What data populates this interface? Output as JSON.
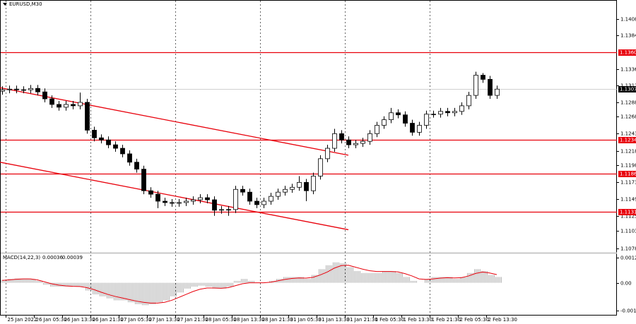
{
  "chart_data": {
    "type": "candlestick",
    "title": "EURUSD,M30",
    "ylim": [
      1.1073,
      1.1435
    ],
    "yticks": [
      1.1408,
      1.1384,
      1.1336,
      1.1312,
      1.1288,
      1.1268,
      1.1243,
      1.1218,
      1.1198,
      1.1173,
      1.1149,
      1.1125,
      1.1103,
      1.1078
    ],
    "levels": [
      {
        "value": 1.136,
        "label": "1.1360"
      },
      1.1234,
      1.1186,
      1.1131
    ],
    "level_color": "#e8000b",
    "last_price": 1.1307,
    "x_labels": [
      "25 Jan 2022",
      "26 Jan 05:30",
      "26 Jan 13:30",
      "26 Jan 21:30",
      "27 Jan 05:30",
      "27 Jan 13:30",
      "27 Jan 21:30",
      "28 Jan 05:30",
      "28 Jan 13:30",
      "28 Jan 21:30",
      "31 Jan 05:30",
      "31 Jan 13:30",
      "31 Jan 21:30",
      "1 Feb 05:30",
      "1 Feb 13:30",
      "1 Feb 21:30",
      "2 Feb 05:30",
      "2 Feb 13:30"
    ],
    "open": [
      1.1304,
      1.1306,
      1.1307,
      1.1306,
      1.1306,
      1.1308,
      1.1303,
      1.1293,
      1.1285,
      1.1281,
      1.1285,
      1.1283,
      1.1288,
      1.1248,
      1.1237,
      1.1234,
      1.1227,
      1.1222,
      1.1214,
      1.1202,
      1.1192,
      1.1161,
      1.1156,
      1.1146,
      1.1144,
      1.1143,
      1.1144,
      1.1146,
      1.1148,
      1.1151,
      1.1148,
      1.1133,
      1.1134,
      1.1134,
      1.1163,
      1.1159,
      1.1146,
      1.1141,
      1.1146,
      1.1153,
      1.1159,
      1.1163,
      1.1166,
      1.1173,
      1.1161,
      1.1182,
      1.1207,
      1.1222,
      1.1243,
      1.1234,
      1.1227,
      1.1229,
      1.1232,
      1.1243,
      1.1255,
      1.1263,
      1.1273,
      1.127,
      1.1258,
      1.1245,
      1.1255,
      1.1271,
      1.1271,
      1.1275,
      1.1273,
      1.1275,
      1.1283,
      1.1298,
      1.1327,
      1.1321,
      1.1298
    ],
    "high": [
      1.1311,
      1.1312,
      1.1312,
      1.1311,
      1.1313,
      1.1313,
      1.1308,
      1.1298,
      1.129,
      1.129,
      1.129,
      1.1302,
      1.1293,
      1.1253,
      1.1242,
      1.1239,
      1.1232,
      1.1227,
      1.1219,
      1.1207,
      1.1197,
      1.1166,
      1.1161,
      1.1151,
      1.1149,
      1.1149,
      1.1151,
      1.1153,
      1.1156,
      1.1156,
      1.1153,
      1.1139,
      1.1139,
      1.1168,
      1.1168,
      1.1164,
      1.1151,
      1.1151,
      1.1158,
      1.1164,
      1.1168,
      1.1171,
      1.1182,
      1.1178,
      1.1187,
      1.1212,
      1.1227,
      1.125,
      1.1248,
      1.1239,
      1.1234,
      1.1237,
      1.1248,
      1.126,
      1.1268,
      1.128,
      1.1278,
      1.1275,
      1.1263,
      1.126,
      1.1276,
      1.1276,
      1.128,
      1.128,
      1.128,
      1.1288,
      1.1303,
      1.1332,
      1.133,
      1.1326,
      1.1312
    ],
    "low": [
      1.1299,
      1.1301,
      1.1301,
      1.1301,
      1.1301,
      1.1298,
      1.1288,
      1.128,
      1.1276,
      1.1276,
      1.1278,
      1.1278,
      1.1243,
      1.1232,
      1.1229,
      1.1222,
      1.1217,
      1.1209,
      1.1197,
      1.1187,
      1.1156,
      1.1151,
      1.1136,
      1.1139,
      1.1138,
      1.1138,
      1.1139,
      1.1141,
      1.1143,
      1.1143,
      1.1125,
      1.1128,
      1.1125,
      1.1129,
      1.1154,
      1.1141,
      1.1136,
      1.1136,
      1.1141,
      1.1148,
      1.1154,
      1.1158,
      1.1161,
      1.1146,
      1.1156,
      1.1177,
      1.1202,
      1.1217,
      1.1229,
      1.1222,
      1.1222,
      1.1224,
      1.1227,
      1.1238,
      1.125,
      1.1258,
      1.1265,
      1.1253,
      1.124,
      1.124,
      1.125,
      1.1266,
      1.1266,
      1.1268,
      1.1268,
      1.127,
      1.1278,
      1.1293,
      1.1316,
      1.1293,
      1.1293
    ],
    "close": [
      1.1306,
      1.1307,
      1.1306,
      1.1306,
      1.1308,
      1.1303,
      1.1293,
      1.1285,
      1.1281,
      1.1285,
      1.1283,
      1.1288,
      1.1248,
      1.1237,
      1.1234,
      1.1227,
      1.1222,
      1.1214,
      1.1202,
      1.1192,
      1.1161,
      1.1156,
      1.1146,
      1.1144,
      1.1143,
      1.1144,
      1.1146,
      1.1148,
      1.1151,
      1.1148,
      1.1133,
      1.1134,
      1.1134,
      1.1163,
      1.1159,
      1.1146,
      1.1141,
      1.1146,
      1.1153,
      1.1159,
      1.1163,
      1.1166,
      1.1173,
      1.1161,
      1.1182,
      1.1207,
      1.1222,
      1.1243,
      1.1234,
      1.1227,
      1.1229,
      1.1232,
      1.1243,
      1.1255,
      1.1263,
      1.1273,
      1.127,
      1.1258,
      1.1245,
      1.1255,
      1.1271,
      1.1271,
      1.1275,
      1.1273,
      1.1275,
      1.1283,
      1.1298,
      1.1327,
      1.1321,
      1.1298,
      1.1307
    ],
    "trendlines": [
      {
        "x": [
          0,
          49
        ],
        "values": [
          1.1309,
          1.1212
        ],
        "color": "#e8000b"
      },
      {
        "x": [
          0,
          49
        ],
        "values": [
          1.1202,
          1.1105
        ],
        "color": "#e8000b"
      }
    ],
    "macd": {
      "label": "MACD(14,22,3)",
      "current": [
        0.00036,
        0.00039
      ],
      "ylim": [
        -0.00168,
        0.00147
      ],
      "yticks": [
        0.00129,
        {
          "value": 0,
          "label": "0.00"
        },
        -0.00143
      ],
      "histogram_color": "#a0a0a0",
      "signal_color": "#e8000b",
      "histogram": [
        0.00015,
        0.0002,
        0.00022,
        0.00022,
        0.0002,
        0.0001,
        -0.0001,
        -0.0002,
        -0.0002,
        -0.0002,
        -0.0002,
        -0.0002,
        -0.0004,
        -0.0006,
        -0.0007,
        -0.0008,
        -0.0009,
        -0.0009,
        -0.001,
        -0.0011,
        -0.00115,
        -0.0011,
        -0.001,
        -0.0009,
        -0.0007,
        -0.0005,
        -0.0003,
        -0.0002,
        -0.00015,
        -0.0002,
        -0.0003,
        -0.0003,
        -0.0002,
        0.0001,
        0.0002,
        0.0001,
        0,
        0,
        0.0001,
        0.0002,
        0.0003,
        0.0003,
        0.0003,
        0.0002,
        0.0004,
        0.0007,
        0.0009,
        0.00105,
        0.001,
        0.0008,
        0.0006,
        0.0005,
        0.0005,
        0.0005,
        0.0006,
        0.0006,
        0.0005,
        0.0003,
        0.0001,
        0,
        0.0002,
        0.0003,
        0.0003,
        0.0003,
        0.0002,
        0.0003,
        0.0005,
        0.0007,
        0.0006,
        0.0004,
        0.0003
      ],
      "signal": [
        0.00012,
        0.00015,
        0.00018,
        0.0002,
        0.0002,
        0.00015,
        5e-05,
        -5e-05,
        -0.00012,
        -0.00016,
        -0.00018,
        -0.00019,
        -0.00025,
        -0.00035,
        -0.00048,
        -0.0006,
        -0.0007,
        -0.00078,
        -0.00086,
        -0.00094,
        -0.001,
        -0.00104,
        -0.00104,
        -0.001,
        -0.0009,
        -0.00075,
        -0.0006,
        -0.00045,
        -0.00033,
        -0.00027,
        -0.00027,
        -0.00028,
        -0.00025,
        -0.00015,
        -5e-05,
        0,
        0,
        0,
        3e-05,
        0.0001,
        0.00017,
        0.00022,
        0.00025,
        0.00024,
        0.00028,
        0.0004,
        0.00055,
        0.00075,
        0.00088,
        0.0009,
        0.0008,
        0.0007,
        0.00062,
        0.00058,
        0.00058,
        0.00058,
        0.00056,
        0.00047,
        0.00035,
        0.0002,
        0.00017,
        0.0002,
        0.00024,
        0.00026,
        0.00025,
        0.00026,
        0.00035,
        0.00048,
        0.00055,
        0.0005,
        0.00042
      ]
    }
  }
}
